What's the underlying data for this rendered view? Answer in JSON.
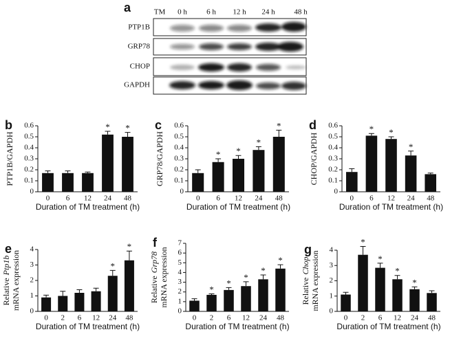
{
  "blot": {
    "panel": "a",
    "treatment": "TM",
    "lanes": [
      "0 h",
      "6 h",
      "12 h",
      "24 h",
      "48 h"
    ],
    "rows": [
      "PTP1B",
      "GRP78",
      "CHOP",
      "GAPDH"
    ]
  },
  "chart_data": [
    {
      "type": "bar",
      "panel": "b",
      "ylabel": "PTP1B/GAPDH",
      "xlabel": "Duration of TM treatment (h)",
      "categories": [
        "0",
        "6",
        "12",
        "24",
        "48"
      ],
      "values": [
        0.17,
        0.17,
        0.17,
        0.52,
        0.5
      ],
      "errors": [
        0.02,
        0.02,
        0.01,
        0.03,
        0.04
      ],
      "markers": [
        null,
        null,
        null,
        "*",
        "*"
      ],
      "ylim": [
        0,
        0.6
      ],
      "yticks": [
        0,
        0.1,
        0.2,
        0.3,
        0.4,
        0.5,
        0.6
      ],
      "color": "#111111"
    },
    {
      "type": "bar",
      "panel": "c",
      "ylabel": "GRP78/GAPDH",
      "xlabel": "Duration of TM treatment (h)",
      "categories": [
        "0",
        "6",
        "12",
        "24",
        "48"
      ],
      "values": [
        0.17,
        0.27,
        0.3,
        0.38,
        0.5
      ],
      "errors": [
        0.03,
        0.03,
        0.03,
        0.03,
        0.06
      ],
      "markers": [
        null,
        "*",
        "*",
        "*",
        "*"
      ],
      "ylim": [
        0,
        0.6
      ],
      "yticks": [
        0,
        0.1,
        0.2,
        0.3,
        0.4,
        0.5,
        0.6
      ],
      "color": "#111111"
    },
    {
      "type": "bar",
      "panel": "d",
      "ylabel": "CHOP/GAPDH",
      "xlabel": "Duration of TM treatment (h)",
      "categories": [
        "0",
        "6",
        "12",
        "24",
        "48"
      ],
      "values": [
        0.18,
        0.51,
        0.48,
        0.33,
        0.16
      ],
      "errors": [
        0.03,
        0.02,
        0.02,
        0.04,
        0.01
      ],
      "markers": [
        null,
        "*",
        "*",
        "*",
        null
      ],
      "ylim": [
        0,
        0.6
      ],
      "yticks": [
        0,
        0.1,
        0.2,
        0.3,
        0.4,
        0.5,
        0.6
      ],
      "color": "#111111"
    },
    {
      "type": "bar",
      "panel": "e",
      "ylabel_prefix": "Relative",
      "ylabel_gene": "Ptp1b",
      "ylabel_line2": "mRNA expression",
      "xlabel": "Duration of TM treatment (h)",
      "categories": [
        "0",
        "2",
        "6",
        "12",
        "24",
        "48"
      ],
      "values": [
        0.9,
        1.0,
        1.2,
        1.3,
        2.3,
        3.3
      ],
      "errors": [
        0.15,
        0.3,
        0.2,
        0.2,
        0.35,
        0.6
      ],
      "markers": [
        null,
        null,
        null,
        null,
        "*",
        "*"
      ],
      "ylim": [
        0,
        4
      ],
      "yticks": [
        0,
        1,
        2,
        3,
        4
      ],
      "color": "#111111"
    },
    {
      "type": "bar",
      "panel": "f",
      "ylabel_prefix": "Relative",
      "ylabel_gene": "Grp78",
      "ylabel_line2": "mRNA expression",
      "xlabel": "Duration of TM treatment (h)",
      "categories": [
        "0",
        "2",
        "6",
        "12",
        "24",
        "48"
      ],
      "values": [
        1.1,
        1.7,
        2.2,
        2.6,
        3.3,
        4.4
      ],
      "errors": [
        0.2,
        0.1,
        0.25,
        0.45,
        0.45,
        0.4
      ],
      "markers": [
        null,
        "*",
        "*",
        "*",
        "*",
        "*"
      ],
      "ylim": [
        0,
        7
      ],
      "yticks": [
        0,
        1,
        2,
        3,
        4,
        5,
        6,
        7
      ],
      "color": "#111111"
    },
    {
      "type": "bar",
      "panel": "g",
      "ylabel_prefix": "Relative",
      "ylabel_gene": "Chop",
      "ylabel_line2": "mRNA expression",
      "xlabel": "Duration of TM treatment (h)",
      "categories": [
        "0",
        "2",
        "6",
        "12",
        "24",
        "48"
      ],
      "values": [
        1.1,
        3.7,
        2.85,
        2.1,
        1.45,
        1.2
      ],
      "errors": [
        0.15,
        0.55,
        0.3,
        0.25,
        0.15,
        0.15
      ],
      "markers": [
        null,
        "*",
        "*",
        "*",
        "*",
        null
      ],
      "ylim": [
        0,
        4
      ],
      "yticks": [
        0,
        1,
        2,
        3,
        4
      ],
      "color": "#111111"
    }
  ]
}
